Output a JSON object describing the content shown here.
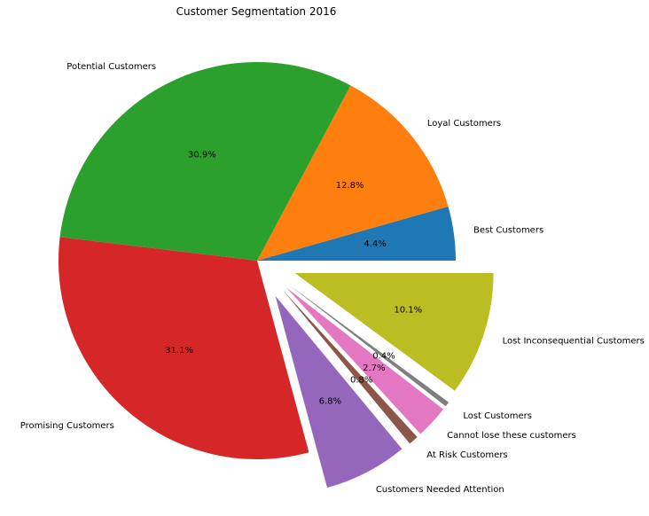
{
  "chart_data": {
    "type": "pie",
    "title": "Customer Segmentation 2016",
    "start_angle_deg": 0,
    "direction": "counterclockwise",
    "slices": [
      {
        "label": "Best Customers",
        "value": 4.4,
        "pct_label": "4.4%",
        "color": "#1f77b4",
        "exploded": false
      },
      {
        "label": "Loyal Customers",
        "value": 12.8,
        "pct_label": "12.8%",
        "color": "#ff7f0e",
        "exploded": false
      },
      {
        "label": "Potential Customers",
        "value": 30.9,
        "pct_label": "30.9%",
        "color": "#2ca02c",
        "exploded": false
      },
      {
        "label": "Promising Customers",
        "value": 31.1,
        "pct_label": "31.1%",
        "color": "#d62728",
        "exploded": false
      },
      {
        "label": "Customers Needed Attention",
        "value": 6.8,
        "pct_label": "6.8%",
        "color": "#9467bd",
        "exploded": true
      },
      {
        "label": "At Risk Customers",
        "value": 0.8,
        "pct_label": "0.8%",
        "color": "#8c564b",
        "exploded": true
      },
      {
        "label": "Cannot lose these customers",
        "value": 2.7,
        "pct_label": "2.7%",
        "color": "#e377c2",
        "exploded": true
      },
      {
        "label": "Lost Customers",
        "value": 0.4,
        "pct_label": "0.4%",
        "color": "#7f7f7f",
        "exploded": true
      },
      {
        "label": "Lost Inconsequential Customers",
        "value": 10.1,
        "pct_label": "10.1%",
        "color": "#bcbd22",
        "exploded": true
      }
    ]
  }
}
